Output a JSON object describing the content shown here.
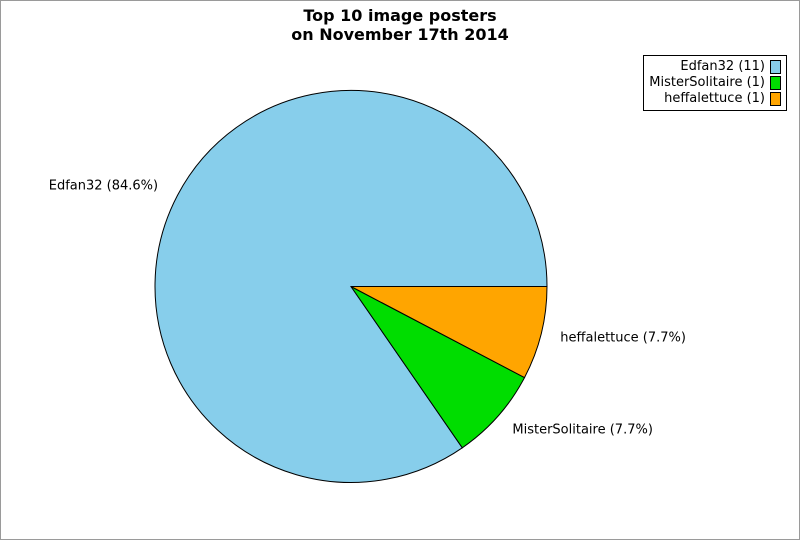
{
  "title": {
    "line1": "Top 10 image posters",
    "line2": "on November 17th 2014"
  },
  "chart_data": {
    "type": "pie",
    "title": "Top 10 image posters on November 17th 2014",
    "categories": [
      "Edfan32",
      "MisterSolitaire",
      "heffalettuce"
    ],
    "values": [
      11,
      1,
      1
    ],
    "percentages": [
      84.6,
      7.7,
      7.7
    ],
    "colors": [
      "#87CEEB",
      "#00DD00",
      "#FFA500"
    ],
    "start_angle_deg": 0,
    "direction": "counterclockwise",
    "slice_display_labels": [
      "Edfan32 (84.6%)",
      "MisterSolitaire (7.7%)",
      "heffalettuce (7.7%)"
    ],
    "legend_position": "top-right",
    "legend_labels": [
      "Edfan32 (11)",
      "MisterSolitaire (1)",
      "heffalettuce (1)"
    ]
  },
  "legend": {
    "items": [
      {
        "label": "Edfan32 (11)",
        "color": "#87CEEB"
      },
      {
        "label": "MisterSolitaire (1)",
        "color": "#00DD00"
      },
      {
        "label": "heffalettuce (1)",
        "color": "#FFA500"
      }
    ]
  }
}
